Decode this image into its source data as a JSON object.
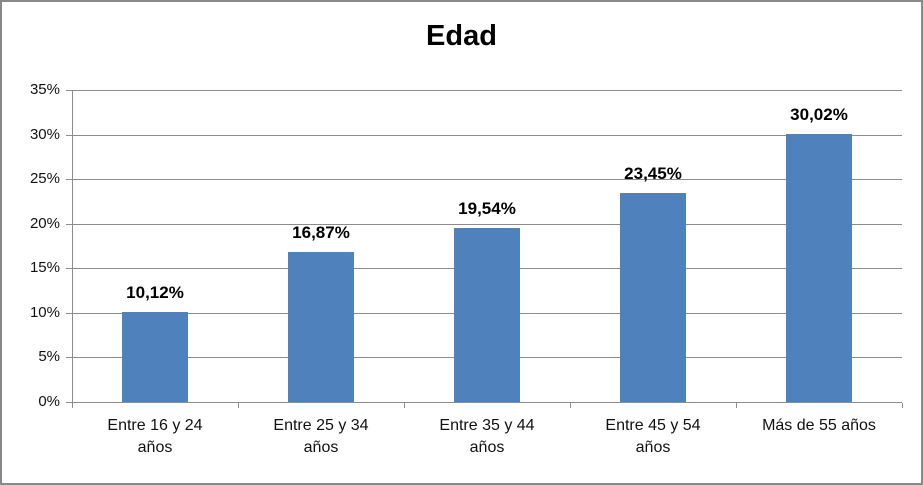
{
  "chart_data": {
    "type": "bar",
    "title": "Edad",
    "categories": [
      "Entre 16 y 24 años",
      "Entre 25 y 34 años",
      "Entre 35 y 44 años",
      "Entre 45 y 54 años",
      "Más de 55 años"
    ],
    "values": [
      10.12,
      16.87,
      19.54,
      23.45,
      30.02
    ],
    "value_labels": [
      "10,12%",
      "16,87%",
      "19,54%",
      "23,45%",
      "30,02%"
    ],
    "xlabel": "",
    "ylabel": "",
    "ylim": [
      0,
      35
    ],
    "ytick_step": 5,
    "ytick_labels": [
      "0%",
      "5%",
      "10%",
      "15%",
      "20%",
      "25%",
      "30%",
      "35%"
    ],
    "grid": true,
    "legend_position": "none",
    "bar_color": "#4f81bd",
    "gridline_color": "#8c8c8c",
    "border_color": "#898989"
  }
}
